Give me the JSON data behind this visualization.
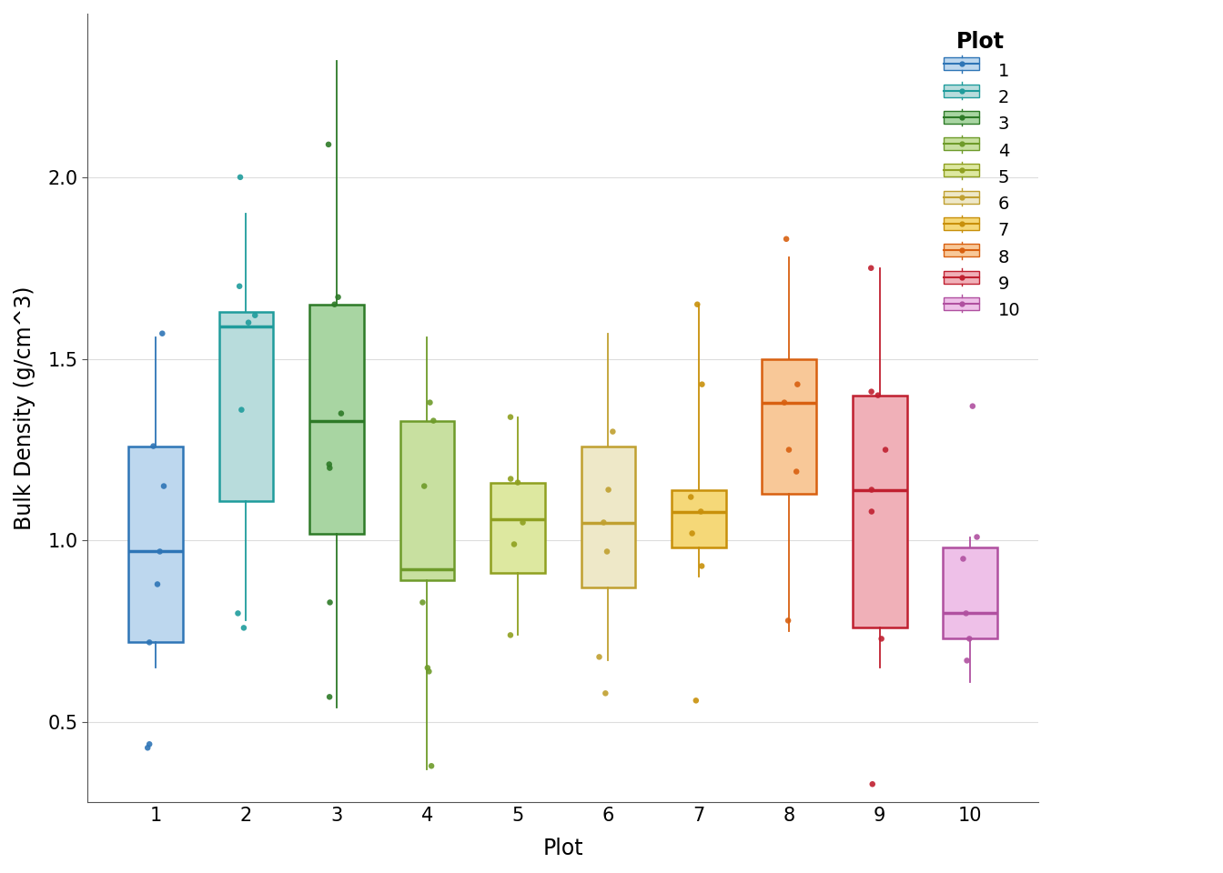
{
  "title": "",
  "xlabel": "Plot",
  "ylabel": "Bulk Density (g/cm^3)",
  "plots": [
    1,
    2,
    3,
    4,
    5,
    6,
    7,
    8,
    9,
    10
  ],
  "box_data": {
    "1": {
      "q1": 0.72,
      "median": 0.97,
      "q3": 1.26,
      "whisker_low": 0.65,
      "whisker_high": 1.56,
      "points": [
        1.26,
        1.15,
        0.97,
        0.88,
        0.72,
        0.44,
        0.43,
        1.57
      ]
    },
    "2": {
      "q1": 1.11,
      "median": 1.59,
      "q3": 1.63,
      "whisker_low": 0.78,
      "whisker_high": 1.9,
      "points": [
        0.8,
        0.76,
        1.36,
        1.6,
        1.62,
        1.7,
        2.0
      ]
    },
    "3": {
      "q1": 1.02,
      "median": 1.33,
      "q3": 1.65,
      "whisker_low": 0.54,
      "whisker_high": 2.32,
      "points": [
        0.57,
        0.83,
        1.21,
        1.2,
        1.35,
        1.65,
        1.67,
        2.09
      ]
    },
    "4": {
      "q1": 0.89,
      "median": 0.92,
      "q3": 1.33,
      "whisker_low": 0.37,
      "whisker_high": 1.56,
      "points": [
        0.64,
        0.65,
        0.83,
        1.15,
        1.33,
        1.38,
        0.38
      ]
    },
    "5": {
      "q1": 0.91,
      "median": 1.06,
      "q3": 1.16,
      "whisker_low": 0.74,
      "whisker_high": 1.34,
      "points": [
        0.74,
        0.99,
        1.05,
        1.16,
        1.17,
        1.34
      ]
    },
    "6": {
      "q1": 0.87,
      "median": 1.05,
      "q3": 1.26,
      "whisker_low": 0.67,
      "whisker_high": 1.57,
      "points": [
        0.68,
        0.97,
        1.05,
        1.14,
        1.3,
        0.58
      ]
    },
    "7": {
      "q1": 0.98,
      "median": 1.08,
      "q3": 1.14,
      "whisker_low": 0.9,
      "whisker_high": 1.65,
      "points": [
        0.93,
        1.02,
        1.08,
        1.12,
        1.43,
        1.65,
        0.56
      ]
    },
    "8": {
      "q1": 1.13,
      "median": 1.38,
      "q3": 1.5,
      "whisker_low": 0.75,
      "whisker_high": 1.78,
      "points": [
        0.78,
        1.19,
        1.25,
        1.38,
        1.43,
        1.83
      ]
    },
    "9": {
      "q1": 0.76,
      "median": 1.14,
      "q3": 1.4,
      "whisker_low": 0.65,
      "whisker_high": 1.75,
      "points": [
        0.73,
        1.08,
        1.14,
        1.25,
        1.4,
        1.41,
        1.75,
        0.33
      ]
    },
    "10": {
      "q1": 0.73,
      "median": 0.8,
      "q3": 0.98,
      "whisker_low": 0.61,
      "whisker_high": 1.01,
      "points": [
        0.67,
        0.73,
        0.8,
        0.95,
        1.01,
        1.37
      ]
    }
  },
  "colors": {
    "1": {
      "box": "#BDD7EE",
      "edge": "#2E75B6",
      "point": "#2E75B6"
    },
    "2": {
      "box": "#B8DCDC",
      "edge": "#1F9C9C",
      "point": "#1F9C9C"
    },
    "3": {
      "box": "#A8D5A2",
      "edge": "#2D7A27",
      "point": "#2D7A27"
    },
    "4": {
      "box": "#C8E0A0",
      "edge": "#6E9B2A",
      "point": "#6E9B2A"
    },
    "5": {
      "box": "#DDE8A0",
      "edge": "#8FA020",
      "point": "#8FA020"
    },
    "6": {
      "box": "#EEE8C8",
      "edge": "#C0A030",
      "point": "#C0A030"
    },
    "7": {
      "box": "#F5D878",
      "edge": "#C8900A",
      "point": "#C8900A"
    },
    "8": {
      "box": "#F8C898",
      "edge": "#D86010",
      "point": "#D86010"
    },
    "9": {
      "box": "#F0B0B8",
      "edge": "#C02030",
      "point": "#C02030"
    },
    "10": {
      "box": "#EEC0E8",
      "edge": "#B050A0",
      "point": "#B050A0"
    }
  },
  "ylim": [
    0.28,
    2.45
  ],
  "yticks": [
    0.5,
    1.0,
    1.5,
    2.0
  ],
  "background_color": "#ffffff",
  "box_width": 0.6
}
